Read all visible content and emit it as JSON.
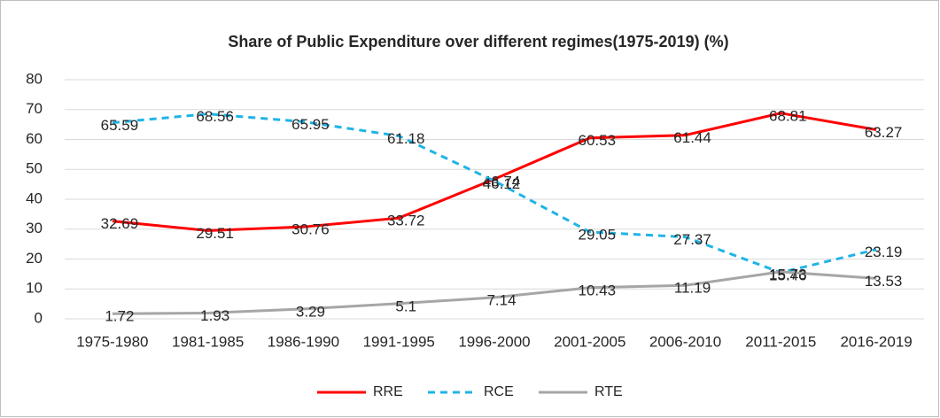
{
  "chart_data": {
    "type": "line",
    "title": "Share of Public Expenditure over different regimes(1975-2019) (%)",
    "categories": [
      "1975-1980",
      "1981-1985",
      "1986-1990",
      "1991-1995",
      "1996-2000",
      "2001-2005",
      "2006-2010",
      "2011-2015",
      "2016-2019"
    ],
    "series": [
      {
        "name": "RRE",
        "color": "#ff0000",
        "dash": false,
        "values": [
          32.69,
          29.51,
          30.76,
          33.72,
          46.74,
          60.53,
          61.44,
          68.81,
          63.27
        ]
      },
      {
        "name": "RCE",
        "color": "#1fb4e6",
        "dash": true,
        "values": [
          65.59,
          68.56,
          65.95,
          61.18,
          46.12,
          29.05,
          27.37,
          15.46,
          23.19
        ]
      },
      {
        "name": "RTE",
        "color": "#a6a6a6",
        "dash": false,
        "values": [
          1.72,
          1.93,
          3.29,
          5.1,
          7.14,
          10.43,
          11.19,
          15.73,
          13.53
        ]
      }
    ],
    "ylim": [
      0,
      80
    ],
    "yticks": [
      0,
      10,
      20,
      30,
      40,
      50,
      60,
      70,
      80
    ],
    "grid": true,
    "legend": "bottom"
  }
}
